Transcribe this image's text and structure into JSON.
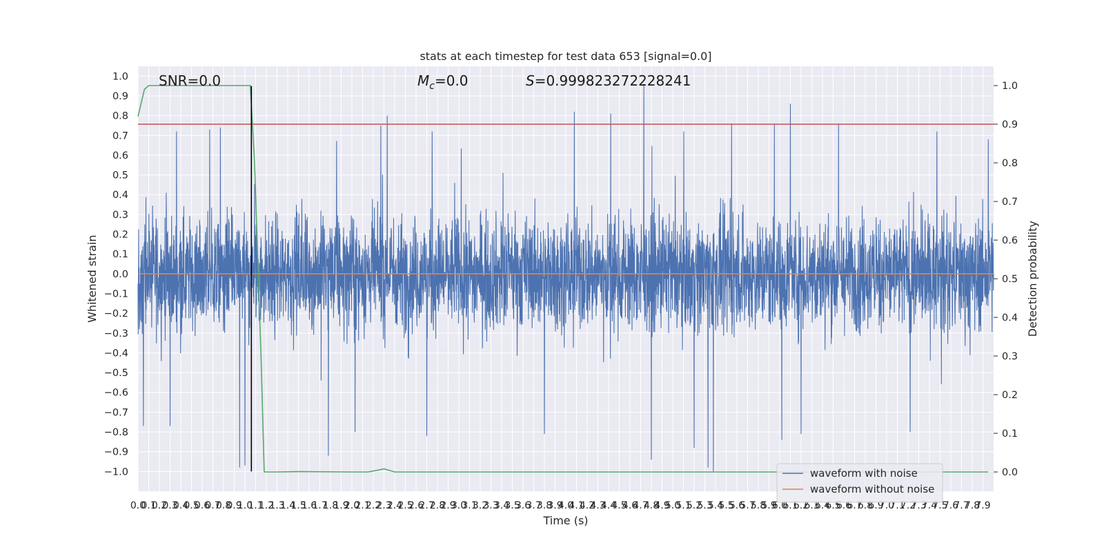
{
  "chart_data": {
    "type": "line",
    "title": "stats at each timestep for test data 653 [signal=0.0]",
    "xlabel": "Time (s)",
    "ylabel": "Whitened strain",
    "y2label": "Detection probability",
    "xlim": [
      0.0,
      8.0
    ],
    "ylim": [
      -1.1,
      1.05
    ],
    "y2lim": [
      -0.05,
      1.05
    ],
    "grid": true,
    "background": "#eaeaf2",
    "x_ticks": [
      0.0,
      0.1,
      0.2,
      0.3,
      0.4,
      0.5,
      0.6,
      0.7,
      0.8,
      0.9,
      1.0,
      1.1,
      1.2,
      1.3,
      1.4,
      1.5,
      1.6,
      1.7,
      1.8,
      1.9,
      2.0,
      2.1,
      2.2,
      2.3,
      2.4,
      2.5,
      2.6,
      2.7,
      2.8,
      2.9,
      3.0,
      3.1,
      3.2,
      3.3,
      3.4,
      3.5,
      3.6,
      3.7,
      3.8,
      3.9,
      4.0,
      4.1,
      4.2,
      4.3,
      4.4,
      4.5,
      4.6,
      4.7,
      4.8,
      4.9,
      5.0,
      5.1,
      5.2,
      5.3,
      5.4,
      5.5,
      5.6,
      5.7,
      5.8,
      5.9,
      6.0,
      6.1,
      6.2,
      6.3,
      6.4,
      6.5,
      6.6,
      6.7,
      6.8,
      6.9,
      7.0,
      7.1,
      7.2,
      7.3,
      7.4,
      7.5,
      7.6,
      7.7,
      7.8,
      7.9
    ],
    "y_ticks": [
      -1.0,
      -0.9,
      -0.8,
      -0.7,
      -0.6,
      -0.5,
      -0.4,
      -0.3,
      -0.2,
      -0.1,
      0.0,
      0.1,
      0.2,
      0.3,
      0.4,
      0.5,
      0.6,
      0.7,
      0.8,
      0.9,
      1.0
    ],
    "y2_ticks": [
      0.0,
      0.1,
      0.2,
      0.3,
      0.4,
      0.5,
      0.6,
      0.7,
      0.8,
      0.9,
      1.0
    ],
    "annotations": {
      "snr": "SNR=0.0",
      "mc_symbol": "M",
      "mc_sub": "c",
      "mc_value": "=0.0",
      "s_symbol": "S",
      "s_value": "=0.999823272228241"
    },
    "series": [
      {
        "name": "waveform with noise",
        "axis": "left",
        "color": "#4c72b0",
        "kind": "noise",
        "envelope": [
          0.4,
          0.45
        ],
        "peaks": [
          {
            "x": 0.05,
            "y": -0.77
          },
          {
            "x": 0.3,
            "y": -0.77
          },
          {
            "x": 0.36,
            "y": 0.72
          },
          {
            "x": 0.67,
            "y": 0.73
          },
          {
            "x": 0.77,
            "y": 0.74
          },
          {
            "x": 0.95,
            "y": -0.98
          },
          {
            "x": 1.0,
            "y": -0.97
          },
          {
            "x": 1.78,
            "y": -0.92
          },
          {
            "x": 2.03,
            "y": -0.8
          },
          {
            "x": 2.27,
            "y": 0.75
          },
          {
            "x": 2.33,
            "y": 0.8
          },
          {
            "x": 2.7,
            "y": -0.82
          },
          {
            "x": 2.75,
            "y": 0.72
          },
          {
            "x": 3.8,
            "y": -0.81
          },
          {
            "x": 4.08,
            "y": 0.82
          },
          {
            "x": 4.42,
            "y": 0.81
          },
          {
            "x": 4.73,
            "y": 0.96
          },
          {
            "x": 4.8,
            "y": -0.94
          },
          {
            "x": 5.2,
            "y": -0.88
          },
          {
            "x": 5.33,
            "y": -0.98
          },
          {
            "x": 5.38,
            "y": -1.0
          },
          {
            "x": 5.55,
            "y": 0.76
          },
          {
            "x": 5.95,
            "y": 0.76
          },
          {
            "x": 6.02,
            "y": -0.84
          },
          {
            "x": 6.1,
            "y": 0.86
          },
          {
            "x": 6.2,
            "y": -0.81
          },
          {
            "x": 6.55,
            "y": 0.76
          },
          {
            "x": 7.22,
            "y": -0.8
          },
          {
            "x": 7.47,
            "y": 0.72
          },
          {
            "x": 7.95,
            "y": 0.68
          }
        ]
      },
      {
        "name": "waveform without noise",
        "axis": "left",
        "color": "#dd8452",
        "x": [
          0.0,
          8.0
        ],
        "y": [
          0.0,
          0.0
        ]
      },
      {
        "axis": "right",
        "color": "#55a868",
        "x": [
          0.0,
          0.06,
          0.1,
          0.15,
          0.3,
          0.6,
          1.0,
          1.05,
          1.06,
          1.09,
          1.12,
          1.15,
          1.18,
          1.3,
          1.5,
          2.0,
          2.15,
          2.25,
          2.3,
          2.4,
          3.0,
          5.0,
          7.0,
          7.95
        ],
        "y": [
          0.92,
          0.99,
          1.0,
          1.0,
          1.0,
          1.0,
          1.0,
          1.0,
          0.95,
          0.8,
          0.55,
          0.3,
          0.0,
          0.0,
          0.001,
          0.0,
          0.0,
          0.005,
          0.008,
          0.0,
          0.0,
          0.0,
          0.0,
          0.0
        ]
      },
      {
        "axis": "right",
        "color": "#c44e52",
        "x": [
          0.0,
          8.0
        ],
        "y": [
          0.9,
          0.9
        ]
      },
      {
        "axis": "left",
        "color": "#000000",
        "x": [
          1.06,
          1.06
        ],
        "y": [
          -1.0,
          0.95
        ]
      }
    ],
    "legend": {
      "placement": "lower-right",
      "entries": [
        "waveform with noise",
        "waveform without noise"
      ]
    }
  }
}
